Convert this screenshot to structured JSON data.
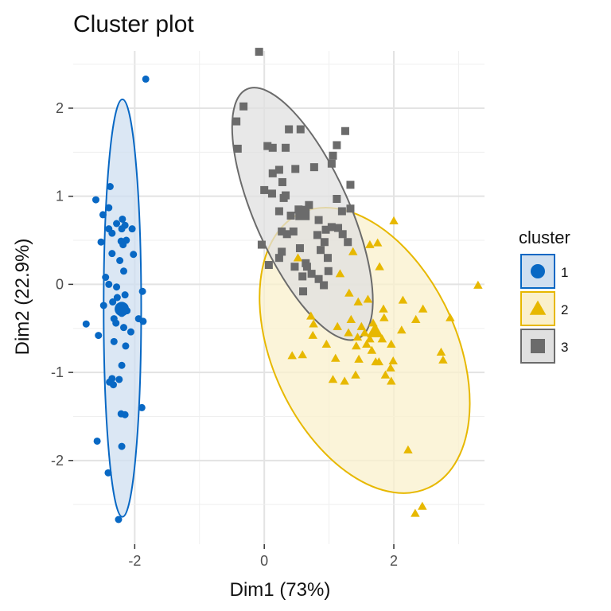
{
  "chart_data": {
    "type": "scatter",
    "title": "Cluster plot",
    "xlabel": "Dim1 (73%)",
    "ylabel": "Dim2 (22.9%)",
    "xlim": [
      -2.95,
      3.4
    ],
    "ylim": [
      -2.95,
      2.65
    ],
    "xticks": [
      -2,
      0,
      2
    ],
    "yticks": [
      -2,
      -1,
      0,
      1,
      2
    ],
    "grid": true,
    "legend": {
      "title": "cluster",
      "placement": "right"
    },
    "series": [
      {
        "name": "1",
        "color": "#0868c4",
        "fill": "#cfdff0",
        "shape": "circle",
        "centroid": [
          -2.2,
          -0.28
        ],
        "ellipse": {
          "cx": -2.19,
          "cy": -0.27,
          "rx": 0.29,
          "ry": 2.37,
          "angle": 0
        },
        "points": [
          [
            -1.83,
            2.33
          ],
          [
            -2.38,
            1.11
          ],
          [
            -2.6,
            0.96
          ],
          [
            -2.4,
            0.87
          ],
          [
            -2.49,
            0.79
          ],
          [
            -2.28,
            0.69
          ],
          [
            -2.19,
            0.74
          ],
          [
            -2.15,
            0.67
          ],
          [
            -2.04,
            0.63
          ],
          [
            -2.2,
            0.63
          ],
          [
            -2.35,
            0.58
          ],
          [
            -2.4,
            0.63
          ],
          [
            -2.13,
            0.5
          ],
          [
            -2.21,
            0.49
          ],
          [
            -2.18,
            0.45
          ],
          [
            -2.52,
            0.48
          ],
          [
            -2.35,
            0.35
          ],
          [
            -2.02,
            0.34
          ],
          [
            -2.23,
            0.27
          ],
          [
            -2.17,
            0.15
          ],
          [
            -2.45,
            0.08
          ],
          [
            -2.4,
            0.0
          ],
          [
            -2.28,
            -0.03
          ],
          [
            -1.88,
            -0.08
          ],
          [
            -2.15,
            -0.12
          ],
          [
            -2.27,
            -0.15
          ],
          [
            -2.34,
            -0.2
          ],
          [
            -2.48,
            -0.24
          ],
          [
            -2.24,
            -0.26
          ],
          [
            -2.12,
            -0.3
          ],
          [
            -2.2,
            -0.33
          ],
          [
            -2.32,
            -0.39
          ],
          [
            -1.94,
            -0.39
          ],
          [
            -1.87,
            -0.42
          ],
          [
            -2.29,
            -0.44
          ],
          [
            -2.17,
            -0.49
          ],
          [
            -2.06,
            -0.54
          ],
          [
            -2.75,
            -0.45
          ],
          [
            -2.56,
            -0.58
          ],
          [
            -2.32,
            -0.65
          ],
          [
            -2.14,
            -0.7
          ],
          [
            -2.2,
            -0.92
          ],
          [
            -2.35,
            -1.07
          ],
          [
            -2.24,
            -1.08
          ],
          [
            -2.39,
            -1.11
          ],
          [
            -2.33,
            -1.14
          ],
          [
            -1.89,
            -1.4
          ],
          [
            -2.21,
            -1.47
          ],
          [
            -2.15,
            -1.48
          ],
          [
            -2.58,
            -1.78
          ],
          [
            -2.2,
            -1.84
          ],
          [
            -2.41,
            -2.14
          ],
          [
            -2.25,
            -2.67
          ]
        ]
      },
      {
        "name": "2",
        "color": "#e7b800",
        "fill": "#faf0cc",
        "shape": "triangle",
        "centroid": [
          1.71,
          -0.53
        ],
        "ellipse": {
          "cx": 1.55,
          "cy": -0.75,
          "rx": 1.42,
          "ry": 1.72,
          "angle": -25
        },
        "points": [
          [
            2.0,
            0.72
          ],
          [
            1.75,
            0.47
          ],
          [
            1.63,
            0.45
          ],
          [
            1.37,
            0.37
          ],
          [
            1.78,
            0.2
          ],
          [
            1.17,
            0.12
          ],
          [
            0.52,
            0.3
          ],
          [
            1.31,
            -0.1
          ],
          [
            2.14,
            -0.18
          ],
          [
            3.3,
            -0.01
          ],
          [
            2.45,
            -0.28
          ],
          [
            1.45,
            -0.2
          ],
          [
            1.6,
            -0.17
          ],
          [
            1.84,
            -0.28
          ],
          [
            1.34,
            -0.4
          ],
          [
            0.72,
            -0.36
          ],
          [
            0.76,
            -0.45
          ],
          [
            1.85,
            -0.38
          ],
          [
            2.34,
            -0.4
          ],
          [
            2.87,
            -0.38
          ],
          [
            1.13,
            -0.48
          ],
          [
            1.3,
            -0.55
          ],
          [
            1.68,
            -0.44
          ],
          [
            1.5,
            -0.48
          ],
          [
            1.55,
            -0.55
          ],
          [
            2.12,
            -0.52
          ],
          [
            1.63,
            -0.62
          ],
          [
            1.76,
            -0.56
          ],
          [
            0.75,
            -0.58
          ],
          [
            1.82,
            -0.62
          ],
          [
            0.96,
            -0.68
          ],
          [
            1.44,
            -0.6
          ],
          [
            1.58,
            -0.68
          ],
          [
            1.42,
            -0.7
          ],
          [
            1.96,
            -0.68
          ],
          [
            2.73,
            -0.77
          ],
          [
            1.66,
            -0.75
          ],
          [
            1.72,
            -0.88
          ],
          [
            0.43,
            -0.81
          ],
          [
            0.59,
            -0.8
          ],
          [
            1.1,
            -0.84
          ],
          [
            1.46,
            -0.85
          ],
          [
            1.77,
            -0.88
          ],
          [
            1.99,
            -0.87
          ],
          [
            1.95,
            -0.95
          ],
          [
            2.76,
            -0.86
          ],
          [
            1.87,
            -1.03
          ],
          [
            1.41,
            -1.03
          ],
          [
            1.06,
            -1.08
          ],
          [
            1.24,
            -1.1
          ],
          [
            1.96,
            -1.1
          ],
          [
            2.22,
            -1.88
          ],
          [
            2.44,
            -2.52
          ],
          [
            2.33,
            -2.6
          ]
        ]
      },
      {
        "name": "3",
        "color": "#6b6b6b",
        "fill": "#e0e0e0",
        "shape": "square",
        "centroid": [
          0.59,
          0.81
        ],
        "ellipse": {
          "cx": 0.59,
          "cy": 0.8,
          "rx": 0.73,
          "ry": 1.55,
          "angle": -24
        },
        "points": [
          [
            -0.08,
            2.64
          ],
          [
            -0.32,
            2.02
          ],
          [
            -0.43,
            1.85
          ],
          [
            0.38,
            1.76
          ],
          [
            0.56,
            1.76
          ],
          [
            -0.41,
            1.54
          ],
          [
            0.05,
            1.57
          ],
          [
            0.13,
            1.55
          ],
          [
            0.33,
            1.55
          ],
          [
            1.25,
            1.74
          ],
          [
            1.12,
            1.58
          ],
          [
            1.06,
            1.46
          ],
          [
            0.13,
            1.26
          ],
          [
            0.23,
            1.3
          ],
          [
            0.28,
            1.16
          ],
          [
            0.48,
            1.31
          ],
          [
            0.77,
            1.33
          ],
          [
            1.04,
            1.37
          ],
          [
            0.3,
            0.98
          ],
          [
            1.33,
            1.13
          ],
          [
            0.0,
            1.07
          ],
          [
            0.12,
            1.03
          ],
          [
            0.33,
            1.01
          ],
          [
            0.59,
            0.84
          ],
          [
            1.12,
            0.97
          ],
          [
            1.33,
            0.86
          ],
          [
            0.53,
            0.85
          ],
          [
            0.69,
            0.9
          ],
          [
            1.2,
            0.83
          ],
          [
            0.41,
            0.78
          ],
          [
            0.23,
            0.83
          ],
          [
            0.84,
            0.73
          ],
          [
            1.14,
            0.64
          ],
          [
            0.27,
            0.6
          ],
          [
            0.45,
            0.6
          ],
          [
            1.04,
            0.65
          ],
          [
            1.21,
            0.57
          ],
          [
            0.35,
            0.57
          ],
          [
            0.82,
            0.56
          ],
          [
            0.95,
            0.62
          ],
          [
            1.29,
            0.48
          ],
          [
            0.93,
            0.48
          ],
          [
            -0.04,
            0.45
          ],
          [
            0.27,
            0.37
          ],
          [
            0.55,
            0.41
          ],
          [
            0.87,
            0.39
          ],
          [
            0.23,
            0.3
          ],
          [
            0.98,
            0.3
          ],
          [
            0.64,
            0.24
          ],
          [
            0.47,
            0.2
          ],
          [
            0.07,
            0.22
          ],
          [
            0.66,
            0.2
          ],
          [
            0.99,
            0.15
          ],
          [
            0.73,
            0.12
          ],
          [
            0.59,
            0.09
          ],
          [
            0.84,
            0.06
          ],
          [
            0.92,
            -0.01
          ],
          [
            0.6,
            -0.08
          ]
        ]
      }
    ]
  }
}
